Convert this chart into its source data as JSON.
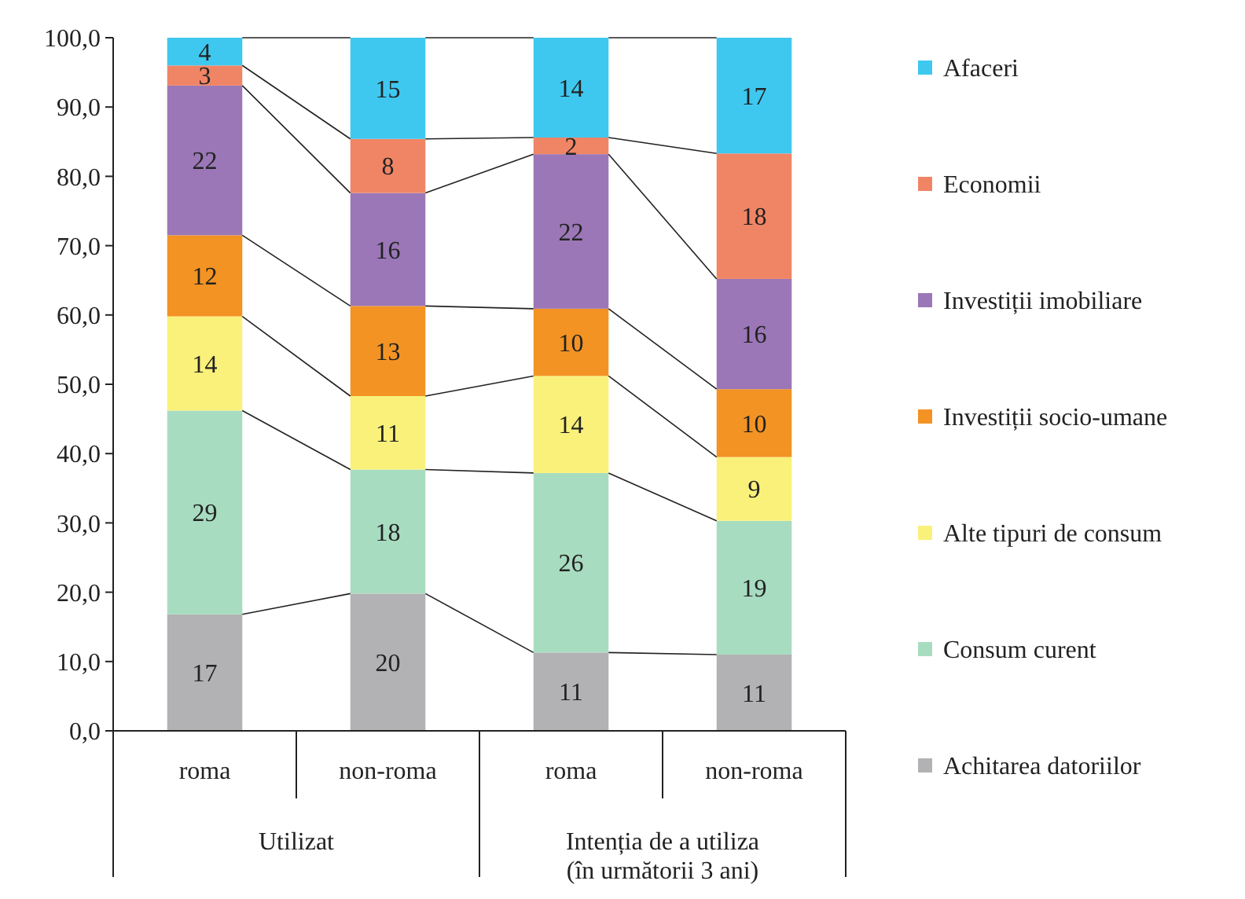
{
  "chart_data": {
    "type": "bar",
    "stacked": true,
    "categories": [
      "roma",
      "non-roma",
      "roma",
      "non-roma"
    ],
    "annotations": [
      "Utilizat",
      "Intenția de a utiliza (în următorii 3 ani)"
    ],
    "ylim": [
      0,
      100
    ],
    "yticks": [
      {
        "value": 0,
        "label": "0,0"
      },
      {
        "value": 10,
        "label": "10,0"
      },
      {
        "value": 20,
        "label": "20,0"
      },
      {
        "value": 30,
        "label": "30,0"
      },
      {
        "value": 40,
        "label": "40,0"
      },
      {
        "value": 50,
        "label": "50,0"
      },
      {
        "value": 60,
        "label": "60,0"
      },
      {
        "value": 70,
        "label": "70,0"
      },
      {
        "value": 80,
        "label": "80,0"
      },
      {
        "value": 90,
        "label": "90,0"
      },
      {
        "value": 100,
        "label": "100,0"
      }
    ],
    "legend": "right",
    "grid": false,
    "series": [
      {
        "name": "Achitarea datoriilor",
        "color": "#b2b2b4",
        "values": [
          16.8,
          19.8,
          11.3,
          11.0
        ],
        "value_labels": [
          "17",
          "20",
          "11",
          "11"
        ]
      },
      {
        "name": "Consum curent",
        "color": "#a8dcc0",
        "values": [
          29.4,
          17.9,
          25.9,
          19.3
        ],
        "value_labels": [
          "29",
          "18",
          "26",
          "19"
        ]
      },
      {
        "name": "Alte tipuri de consum",
        "color": "#f9f17a",
        "values": [
          13.6,
          10.6,
          14.0,
          9.2
        ],
        "value_labels": [
          "14",
          "11",
          "14",
          "9"
        ]
      },
      {
        "name": "Investiții socio-umane",
        "color": "#f39323",
        "values": [
          11.7,
          13.0,
          9.7,
          9.8
        ],
        "value_labels": [
          "12",
          "13",
          "10",
          "10"
        ]
      },
      {
        "name": "Investiții imobiliare",
        "color": "#9b77b7",
        "values": [
          21.6,
          16.3,
          22.3,
          15.9
        ],
        "value_labels": [
          "22",
          "16",
          "22",
          "16"
        ]
      },
      {
        "name": "Economii",
        "color": "#f08565",
        "values": [
          2.9,
          7.8,
          2.4,
          18.1
        ],
        "value_labels": [
          "3",
          "8",
          "2",
          "18"
        ]
      },
      {
        "name": "Afaceri",
        "color": "#3ec8f0",
        "values": [
          4.0,
          14.6,
          14.4,
          16.7
        ],
        "value_labels": [
          "4",
          "15",
          "14",
          "17"
        ]
      }
    ]
  }
}
